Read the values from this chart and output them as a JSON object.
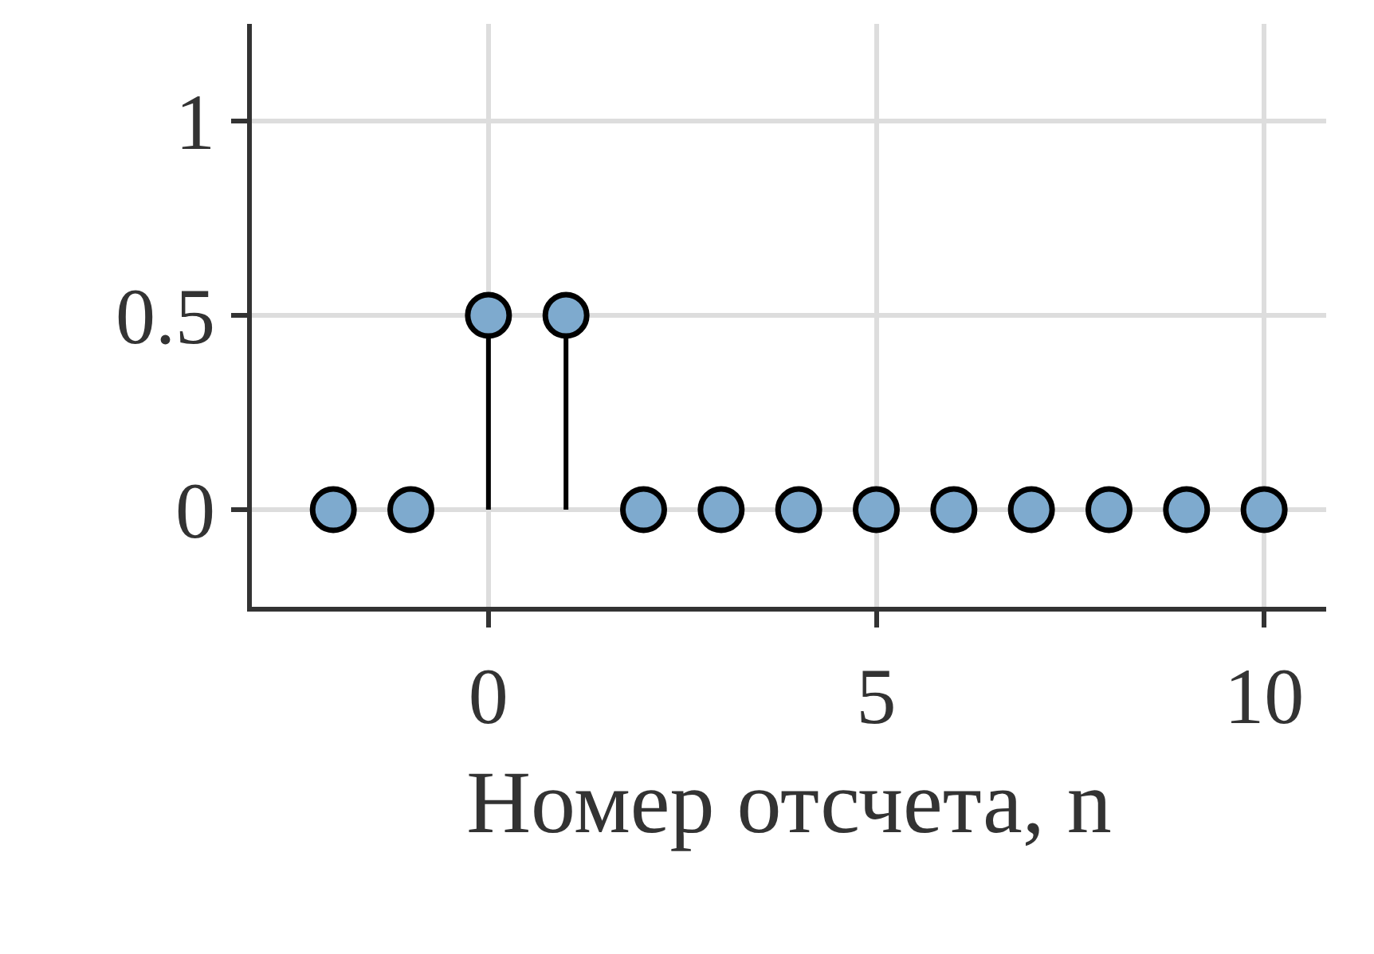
{
  "chart_data": {
    "type": "lollipop",
    "xlabel": "Номер отсчета, n",
    "x": [
      -2,
      -1,
      0,
      1,
      2,
      3,
      4,
      5,
      6,
      7,
      8,
      9,
      10
    ],
    "series": [
      {
        "color": "#7eaace",
        "values": [
          0,
          0,
          0.5,
          0.5,
          0,
          0,
          0,
          0,
          0,
          0,
          0,
          0,
          0
        ]
      }
    ],
    "xlim": [
      -3.05,
      10.8
    ],
    "xticks": [
      0,
      5,
      10
    ],
    "ylim": [
      -0.25,
      1.25
    ],
    "yticks": [
      0,
      0.5,
      1
    ],
    "grid": true,
    "marker": "circle"
  }
}
